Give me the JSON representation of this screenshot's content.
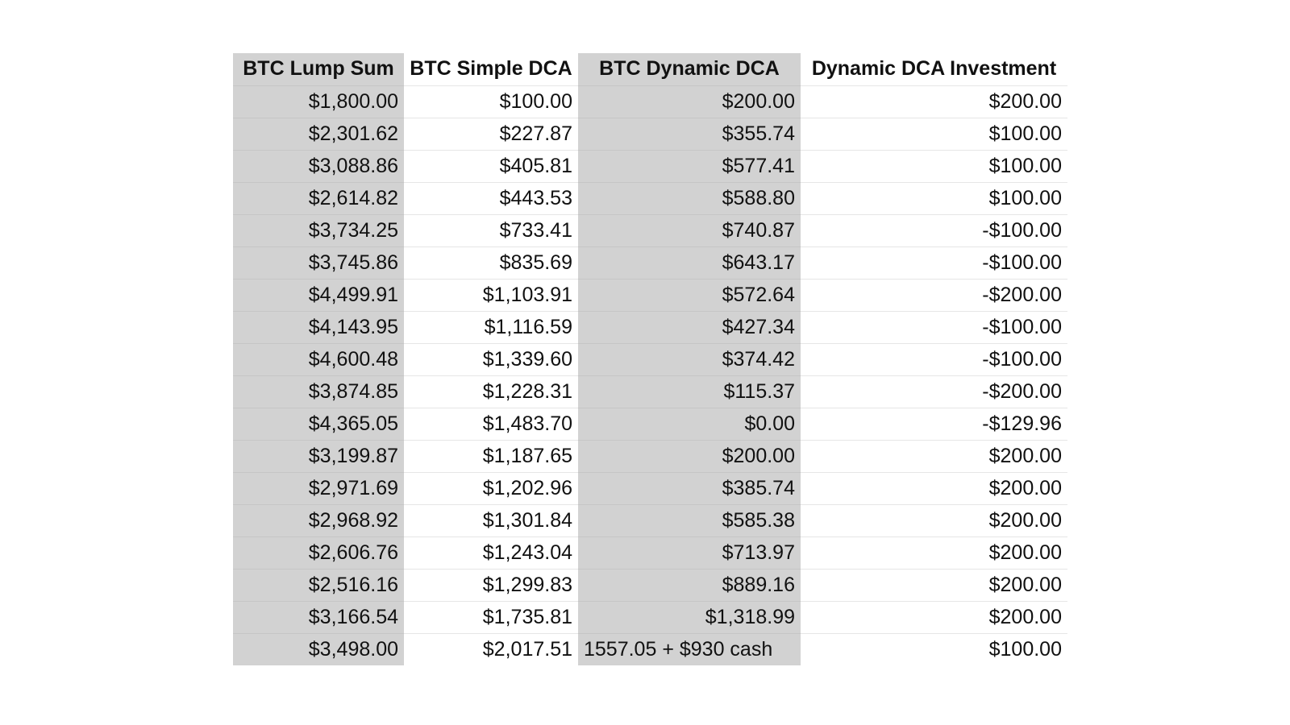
{
  "table": {
    "headers": [
      "BTC Lump Sum",
      "BTC Simple DCA",
      "BTC Dynamic DCA",
      "Dynamic DCA Investment"
    ],
    "rows": [
      [
        "$1,800.00",
        "$100.00",
        "$200.00",
        "$200.00"
      ],
      [
        "$2,301.62",
        "$227.87",
        "$355.74",
        "$100.00"
      ],
      [
        "$3,088.86",
        "$405.81",
        "$577.41",
        "$100.00"
      ],
      [
        "$2,614.82",
        "$443.53",
        "$588.80",
        "$100.00"
      ],
      [
        "$3,734.25",
        "$733.41",
        "$740.87",
        "-$100.00"
      ],
      [
        "$3,745.86",
        "$835.69",
        "$643.17",
        "-$100.00"
      ],
      [
        "$4,499.91",
        "$1,103.91",
        "$572.64",
        "-$200.00"
      ],
      [
        "$4,143.95",
        "$1,116.59",
        "$427.34",
        "-$100.00"
      ],
      [
        "$4,600.48",
        "$1,339.60",
        "$374.42",
        "-$100.00"
      ],
      [
        "$3,874.85",
        "$1,228.31",
        "$115.37",
        "-$200.00"
      ],
      [
        "$4,365.05",
        "$1,483.70",
        "$0.00",
        "-$129.96"
      ],
      [
        "$3,199.87",
        "$1,187.65",
        "$200.00",
        "$200.00"
      ],
      [
        "$2,971.69",
        "$1,202.96",
        "$385.74",
        "$200.00"
      ],
      [
        "$2,968.92",
        "$1,301.84",
        "$585.38",
        "$200.00"
      ],
      [
        "$2,606.76",
        "$1,243.04",
        "$713.97",
        "$200.00"
      ],
      [
        "$2,516.16",
        "$1,299.83",
        "$889.16",
        "$200.00"
      ],
      [
        "$3,166.54",
        "$1,735.81",
        "$1,318.99",
        "$200.00"
      ],
      [
        "$3,498.00",
        "$2,017.51",
        "1557.05 + $930 cash",
        "$100.00"
      ]
    ]
  },
  "colors": {
    "shaded_column": "#d2d2d2",
    "plain_column": "#ffffff",
    "text": "#111111"
  }
}
